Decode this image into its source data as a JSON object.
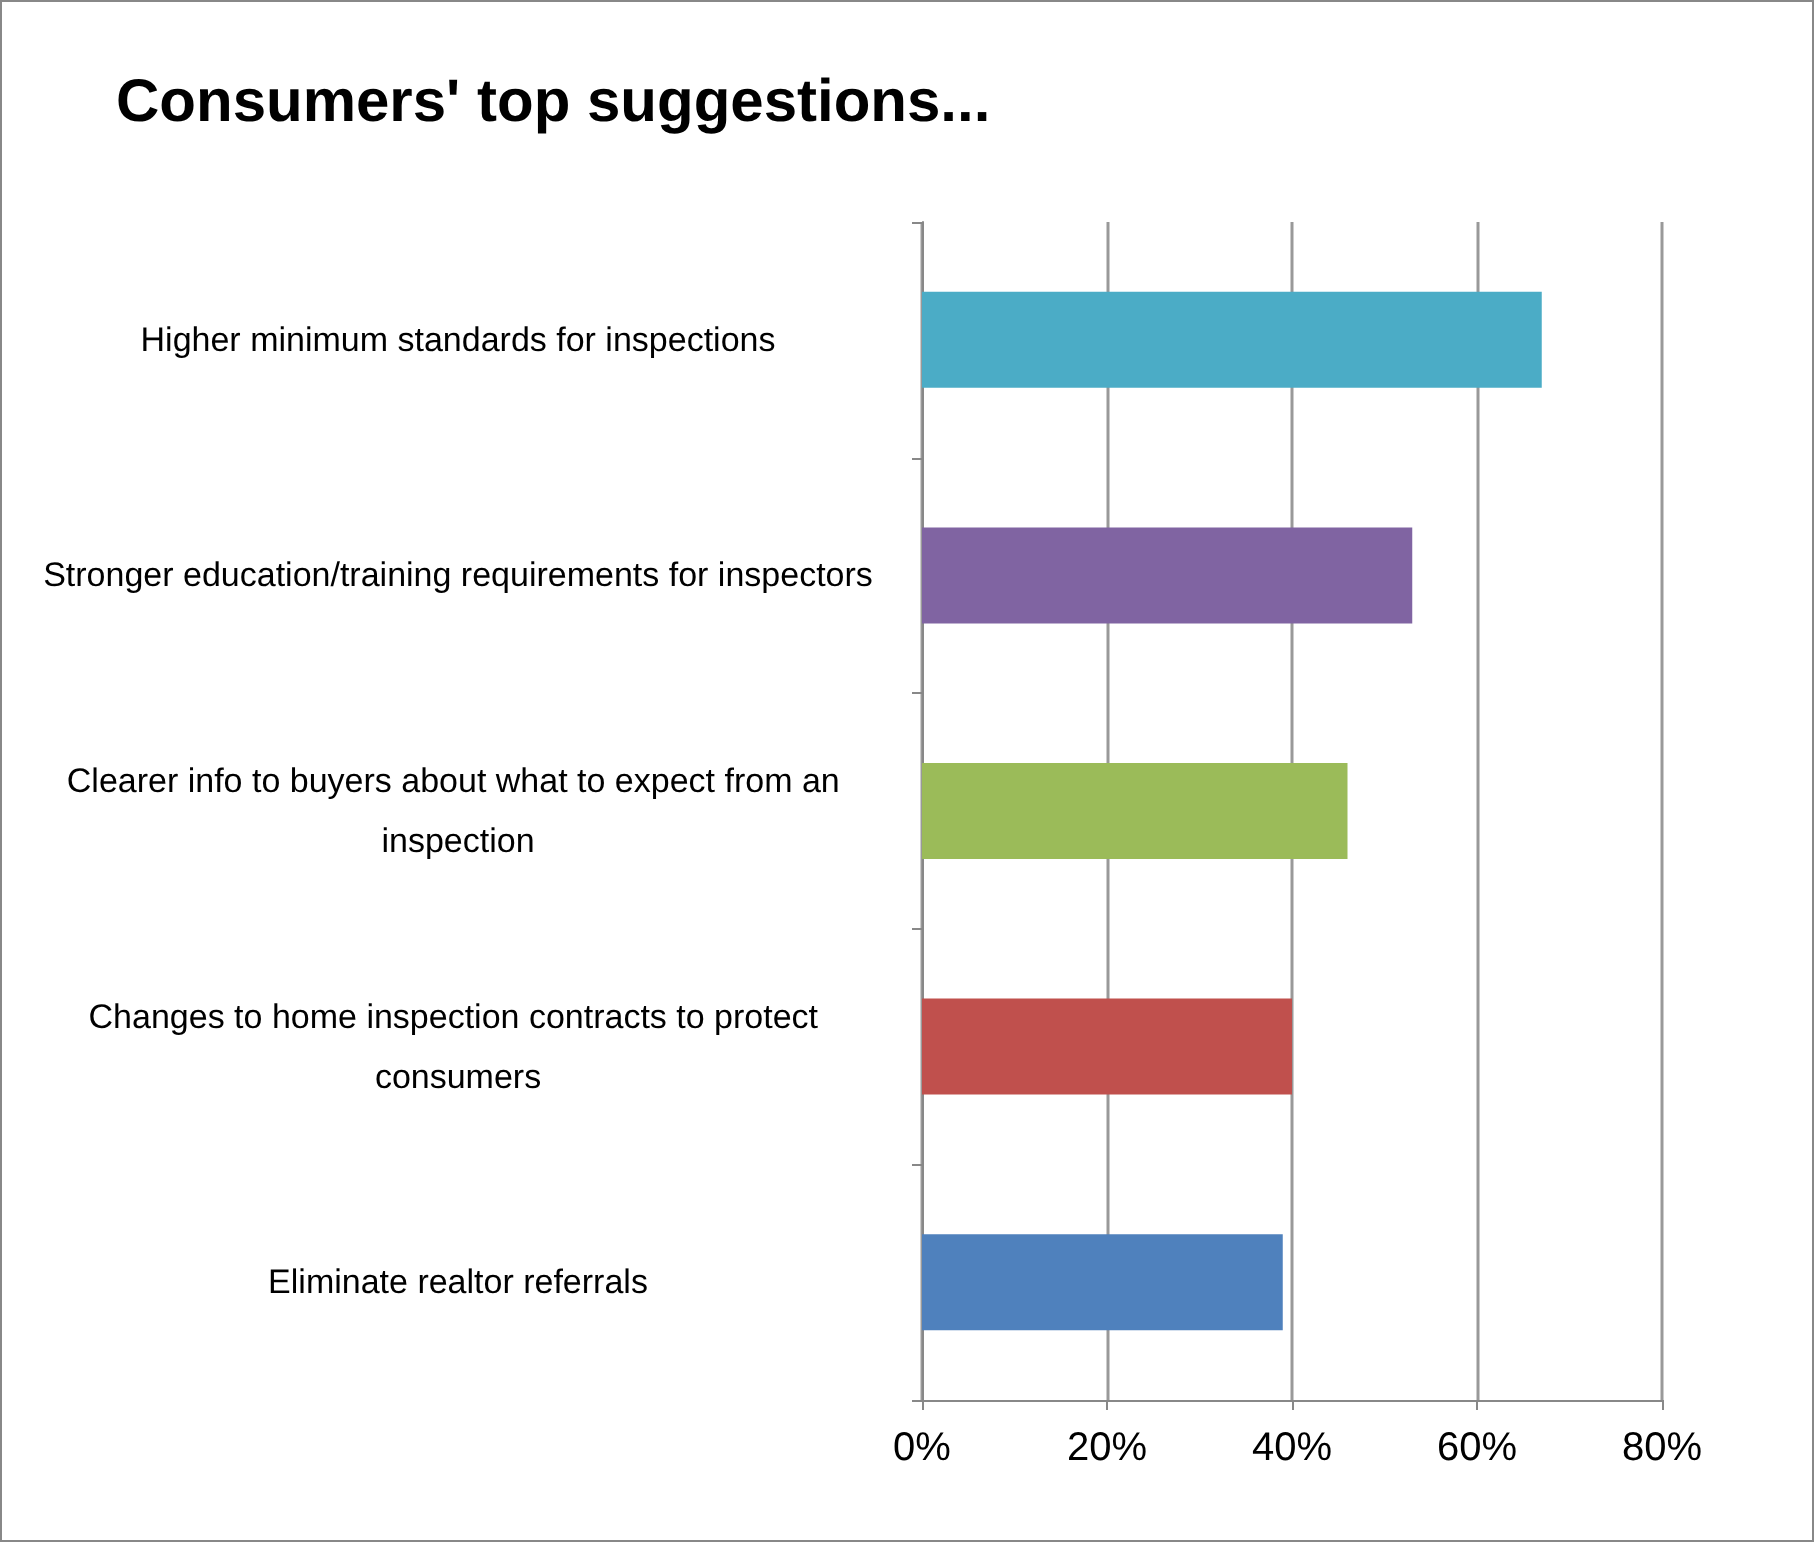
{
  "chart_data": {
    "type": "bar",
    "orientation": "horizontal",
    "title": "Consumers' top suggestions...",
    "categories": [
      "Higher minimum standards for inspections",
      "Stronger education/training requirements for inspectors",
      "Clearer info to buyers about what to expect from an inspection",
      "Changes to home inspection contracts to protect consumers",
      "Eliminate realtor referrals"
    ],
    "values": [
      67,
      53,
      46,
      40,
      39
    ],
    "colors": [
      "#4bacc6",
      "#8064a2",
      "#9bbb59",
      "#c0504d",
      "#4f81bd"
    ],
    "xlim": [
      0,
      80
    ],
    "xticks": [
      {
        "value": 0,
        "label": "0%"
      },
      {
        "value": 20,
        "label": "20%"
      },
      {
        "value": 40,
        "label": "40%"
      },
      {
        "value": 60,
        "label": "60%"
      },
      {
        "value": 80,
        "label": "80%"
      }
    ],
    "grid": "x"
  }
}
